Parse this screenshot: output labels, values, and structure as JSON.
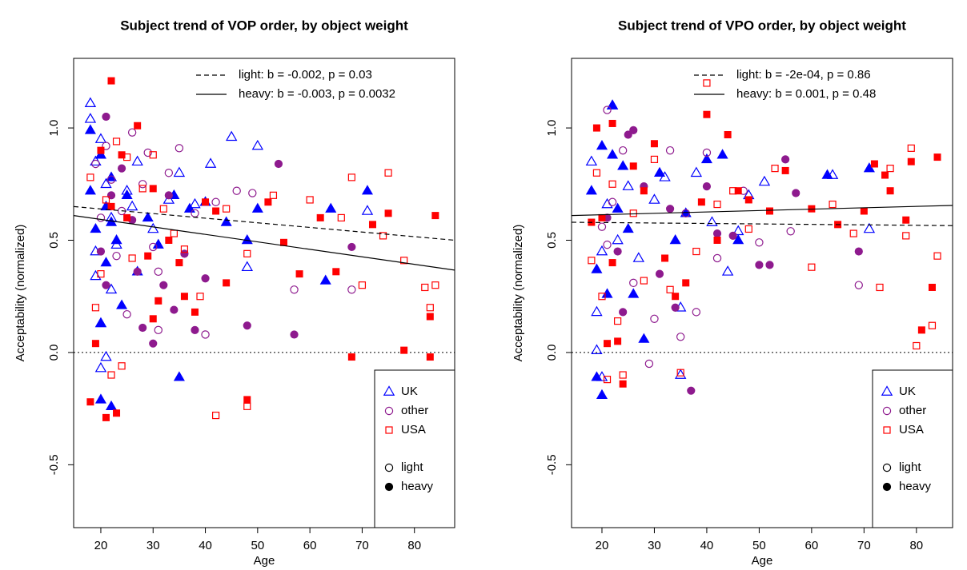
{
  "chart_data": [
    {
      "type": "scatter",
      "title": "Subject trend of VOP order, by object weight",
      "xlabel": "Age",
      "ylabel": "Acceptability (normalized)",
      "xlim": [
        14.8,
        87.7
      ],
      "ylim": [
        -0.78,
        1.31
      ],
      "xticks": [
        20,
        30,
        40,
        50,
        60,
        70,
        80
      ],
      "yticks": [
        -0.5,
        {
          "value": 0,
          "label": "0.0"
        },
        0.5,
        {
          "value": 1,
          "label": "1.0"
        }
      ],
      "hline": 0,
      "fits": [
        {
          "label": "light: b = -0.002, p = 0.03",
          "dash": true,
          "x": [
            14.8,
            87.7
          ],
          "y": [
            0.65,
            0.5
          ]
        },
        {
          "label": "heavy: b = -0.003, p = 0.0032",
          "dash": false,
          "x": [
            14.8,
            87.7
          ],
          "y": [
            0.61,
            0.367
          ]
        }
      ],
      "groups": [
        {
          "name": "UK",
          "color": "#0000ff",
          "shape": "triangle"
        },
        {
          "name": "other",
          "color": "#8e1a8e",
          "shape": "circle"
        },
        {
          "name": "USA",
          "color": "#ff0000",
          "shape": "square"
        }
      ],
      "weights": [
        {
          "name": "light",
          "filled": false
        },
        {
          "name": "heavy",
          "filled": true
        }
      ],
      "series": [
        {
          "group": 0,
          "weight": 0,
          "x": [
            18,
            18,
            19,
            19,
            20,
            20,
            21,
            21,
            22,
            23,
            25,
            27,
            30,
            33,
            35,
            38,
            41,
            45,
            50,
            71,
            20,
            19,
            22,
            26,
            48
          ],
          "y": [
            1.11,
            1.04,
            0.85,
            0.34,
            0.13,
            -0.07,
            0.75,
            -0.02,
            0.6,
            0.48,
            0.72,
            0.85,
            0.55,
            0.68,
            0.8,
            0.66,
            0.84,
            0.96,
            0.92,
            0.63,
            0.95,
            0.45,
            0.28,
            0.65,
            0.38
          ]
        },
        {
          "group": 0,
          "weight": 1,
          "x": [
            18,
            18,
            19,
            20,
            20,
            21,
            21,
            22,
            22,
            23,
            24,
            25,
            27,
            29,
            31,
            34,
            35,
            37,
            40,
            44,
            48,
            50,
            63,
            64,
            71,
            20,
            22
          ],
          "y": [
            0.99,
            0.72,
            0.55,
            0.88,
            -0.21,
            0.4,
            0.65,
            -0.24,
            0.58,
            0.5,
            0.21,
            0.7,
            0.36,
            0.6,
            0.48,
            0.7,
            -0.11,
            0.64,
            0.67,
            0.58,
            0.5,
            0.64,
            0.32,
            0.64,
            0.72,
            0.13,
            0.78
          ]
        },
        {
          "group": 1,
          "weight": 0,
          "x": [
            19,
            20,
            21,
            22,
            23,
            24,
            26,
            28,
            29,
            30,
            31,
            33,
            35,
            38,
            40,
            42,
            46,
            49,
            57,
            68,
            25,
            31
          ],
          "y": [
            0.84,
            0.6,
            0.92,
            0.77,
            0.43,
            0.63,
            0.98,
            0.75,
            0.89,
            0.47,
            0.1,
            0.8,
            0.91,
            0.62,
            0.08,
            0.67,
            0.72,
            0.71,
            0.28,
            0.28,
            0.17,
            0.36
          ]
        },
        {
          "group": 1,
          "weight": 1,
          "x": [
            20,
            21,
            22,
            24,
            26,
            27,
            28,
            30,
            32,
            34,
            36,
            38,
            40,
            48,
            54,
            57,
            68,
            21,
            33
          ],
          "y": [
            0.45,
            1.05,
            0.7,
            0.82,
            0.59,
            0.36,
            0.11,
            0.04,
            0.3,
            0.19,
            0.44,
            0.1,
            0.33,
            0.12,
            0.84,
            0.08,
            0.47,
            0.3,
            0.7
          ]
        },
        {
          "group": 2,
          "weight": 0,
          "x": [
            18,
            19,
            20,
            21,
            22,
            23,
            24,
            25,
            26,
            28,
            30,
            32,
            34,
            36,
            39,
            42,
            44,
            48,
            53,
            60,
            66,
            68,
            70,
            74,
            75,
            78,
            82,
            83,
            84,
            48
          ],
          "y": [
            0.78,
            0.2,
            0.35,
            0.68,
            -0.1,
            0.94,
            -0.06,
            0.87,
            0.42,
            0.73,
            0.88,
            0.64,
            0.53,
            0.46,
            0.25,
            -0.28,
            0.64,
            -0.24,
            0.7,
            0.68,
            0.6,
            0.78,
            0.3,
            0.52,
            0.8,
            0.41,
            0.29,
            0.2,
            0.3,
            0.44
          ]
        },
        {
          "group": 2,
          "weight": 1,
          "x": [
            18,
            19,
            20,
            21,
            22,
            23,
            24,
            25,
            27,
            29,
            30,
            31,
            33,
            35,
            36,
            38,
            40,
            42,
            44,
            48,
            52,
            55,
            58,
            62,
            65,
            68,
            72,
            75,
            78,
            83,
            84,
            22,
            30,
            83
          ],
          "y": [
            -0.22,
            0.04,
            0.9,
            -0.29,
            1.21,
            -0.27,
            0.88,
            0.6,
            1.01,
            0.43,
            0.15,
            0.23,
            0.5,
            0.4,
            0.25,
            0.18,
            0.67,
            0.63,
            0.31,
            -0.21,
            0.67,
            0.49,
            0.35,
            0.6,
            0.36,
            -0.02,
            0.57,
            0.62,
            0.01,
            0.16,
            0.61,
            0.65,
            0.73,
            -0.02
          ]
        }
      ]
    },
    {
      "type": "scatter",
      "title": "Subject trend of VPO order, by object weight",
      "xlabel": "Age",
      "ylabel": "Acceptability (normalized)",
      "xlim": [
        14.2,
        86.9
      ],
      "ylim": [
        -0.78,
        1.31
      ],
      "xticks": [
        20,
        30,
        40,
        50,
        60,
        70,
        80
      ],
      "yticks": [
        -0.5,
        {
          "value": 0,
          "label": "0.0"
        },
        0.5,
        {
          "value": 1,
          "label": "1.0"
        }
      ],
      "hline": 0,
      "fits": [
        {
          "label": "light: b = -2e-04, p = 0.86",
          "dash": true,
          "x": [
            14.2,
            86.9
          ],
          "y": [
            0.58,
            0.565
          ]
        },
        {
          "label": "heavy: b = 0.001, p = 0.48",
          "dash": false,
          "x": [
            14.2,
            86.9
          ],
          "y": [
            0.61,
            0.655
          ]
        }
      ],
      "groups": [
        {
          "name": "UK",
          "color": "#0000ff",
          "shape": "triangle"
        },
        {
          "name": "other",
          "color": "#8e1a8e",
          "shape": "circle"
        },
        {
          "name": "USA",
          "color": "#ff0000",
          "shape": "square"
        }
      ],
      "weights": [
        {
          "name": "light",
          "filled": false
        },
        {
          "name": "heavy",
          "filled": true
        }
      ],
      "series": [
        {
          "group": 0,
          "weight": 0,
          "x": [
            18,
            19,
            19,
            20,
            21,
            22,
            23,
            25,
            27,
            30,
            32,
            35,
            38,
            41,
            44,
            46,
            48,
            51,
            64,
            71,
            20,
            35
          ],
          "y": [
            0.85,
            0.01,
            0.18,
            -0.11,
            0.66,
            1.1,
            0.5,
            0.74,
            0.42,
            0.68,
            0.78,
            -0.1,
            0.8,
            0.58,
            0.36,
            0.54,
            0.7,
            0.76,
            0.79,
            0.55,
            0.45,
            0.2
          ]
        },
        {
          "group": 0,
          "weight": 1,
          "x": [
            18,
            19,
            20,
            20,
            21,
            22,
            23,
            24,
            26,
            28,
            31,
            34,
            36,
            40,
            43,
            46,
            63,
            71,
            19,
            22,
            25
          ],
          "y": [
            0.72,
            -0.11,
            -0.19,
            0.92,
            0.26,
            1.1,
            0.64,
            0.83,
            0.26,
            0.06,
            0.8,
            0.5,
            0.62,
            0.86,
            0.88,
            0.5,
            0.79,
            0.82,
            0.37,
            0.88,
            0.55
          ]
        },
        {
          "group": 1,
          "weight": 0,
          "x": [
            20,
            21,
            22,
            24,
            26,
            29,
            30,
            33,
            35,
            38,
            40,
            42,
            47,
            50,
            56,
            69,
            21,
            36
          ],
          "y": [
            0.56,
            1.08,
            0.67,
            0.9,
            0.31,
            -0.05,
            0.15,
            0.9,
            0.07,
            0.18,
            0.89,
            0.42,
            0.72,
            0.49,
            0.54,
            0.3,
            0.48,
            0.62
          ]
        },
        {
          "group": 1,
          "weight": 1,
          "x": [
            21,
            23,
            25,
            26,
            28,
            31,
            34,
            37,
            40,
            42,
            45,
            50,
            52,
            55,
            57,
            69,
            24,
            33
          ],
          "y": [
            0.6,
            0.45,
            0.97,
            0.99,
            0.74,
            0.35,
            0.2,
            -0.17,
            0.74,
            0.53,
            0.52,
            0.39,
            0.39,
            0.86,
            0.71,
            0.45,
            0.18,
            0.64
          ]
        },
        {
          "group": 2,
          "weight": 0,
          "x": [
            18,
            19,
            20,
            21,
            22,
            23,
            24,
            26,
            28,
            30,
            33,
            35,
            38,
            40,
            42,
            45,
            48,
            53,
            60,
            64,
            68,
            73,
            75,
            78,
            79,
            80,
            83,
            84
          ],
          "y": [
            0.41,
            0.8,
            0.25,
            -0.12,
            0.75,
            0.14,
            -0.1,
            0.62,
            0.32,
            0.86,
            0.28,
            -0.09,
            0.45,
            1.2,
            0.66,
            0.72,
            0.55,
            0.82,
            0.38,
            0.66,
            0.53,
            0.29,
            0.82,
            0.52,
            0.91,
            0.03,
            0.12,
            0.43
          ]
        },
        {
          "group": 2,
          "weight": 1,
          "x": [
            18,
            19,
            20,
            21,
            22,
            23,
            24,
            26,
            28,
            30,
            32,
            34,
            36,
            39,
            40,
            42,
            44,
            46,
            48,
            52,
            55,
            60,
            65,
            70,
            72,
            74,
            75,
            78,
            79,
            81,
            83,
            84,
            22
          ],
          "y": [
            0.58,
            1.0,
            0.6,
            0.04,
            1.02,
            0.05,
            -0.14,
            0.83,
            0.72,
            0.93,
            0.42,
            0.25,
            0.31,
            0.67,
            1.06,
            0.5,
            0.97,
            0.72,
            0.68,
            0.63,
            0.81,
            0.64,
            0.57,
            0.63,
            0.84,
            0.79,
            0.72,
            0.59,
            0.85,
            0.1,
            0.29,
            0.87,
            0.4
          ]
        }
      ]
    }
  ]
}
